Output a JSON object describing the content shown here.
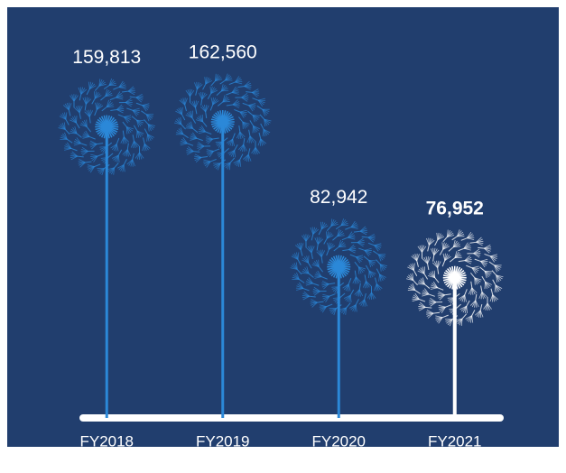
{
  "chart_data": {
    "type": "dandelion",
    "categories": [
      "FY2018",
      "FY2019",
      "FY2020",
      "FY2021"
    ],
    "values": [
      159813,
      162560,
      82942,
      76952
    ],
    "value_labels": [
      "159,813",
      "162,560",
      "82,942",
      "76,952"
    ],
    "colors": [
      "#2b88d8",
      "#2b88d8",
      "#2b88d8",
      "#ffffff"
    ],
    "background": "#213e6e"
  }
}
